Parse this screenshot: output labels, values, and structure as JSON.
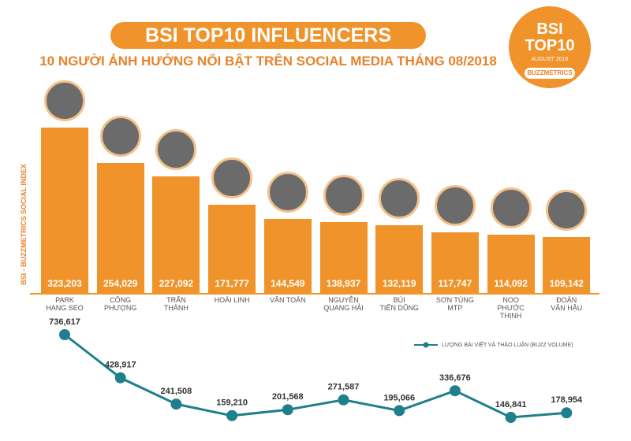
{
  "title": "BSI TOP10 INFLUENCERS",
  "subtitle": "10 NGƯỜI ẢNH HƯỞNG NỔI BẬT TRÊN SOCIAL MEDIA THÁNG 08/2018",
  "logo": {
    "line1": "BSI",
    "line2": "TOP10",
    "date": "AUGUST 2018",
    "brand": "BUZZMETRICS"
  },
  "chart_data": [
    {
      "type": "bar",
      "y_label": "BSI - BUZZMETRICS SOCIAL INDEX",
      "color": "#f0932b",
      "categories": [
        "PARK\nHANG SEO",
        "CÔNG\nPHƯỢNG",
        "TRẤN\nTHÀNH",
        "HOÀI LINH",
        "VĂN TOÀN",
        "NGUYỄN\nQUANG HẢI",
        "BÙI\nTIẾN DŨNG",
        "SƠN TÙNG\nMTP",
        "NOO\nPHƯỚC\nTHỊNH",
        "ĐOÀN\nVĂN HẬU"
      ],
      "values": [
        323203,
        254029,
        227092,
        171777,
        144549,
        138937,
        132119,
        117747,
        114092,
        109142
      ],
      "value_labels": [
        "323,203",
        "254,029",
        "227,092",
        "171,777",
        "144,549",
        "138,937",
        "132,119",
        "117,747",
        "114,092",
        "109,142"
      ]
    },
    {
      "type": "line",
      "color": "#1f7f8c",
      "series": [
        {
          "name": "LƯỢNG BÀI VIẾT VÀ THẢO LUẬN (BUZZ VOLUME)",
          "color": "#1f7f8c",
          "values": [
            736617,
            428917,
            241508,
            159210,
            201568,
            271587,
            195066,
            336676,
            146841,
            178954
          ],
          "value_labels": [
            "736,617",
            "428,917",
            "241,508",
            "159,210",
            "201,568",
            "271,587",
            "195,066",
            "336,676",
            "146,841",
            "178,954"
          ]
        }
      ]
    }
  ]
}
